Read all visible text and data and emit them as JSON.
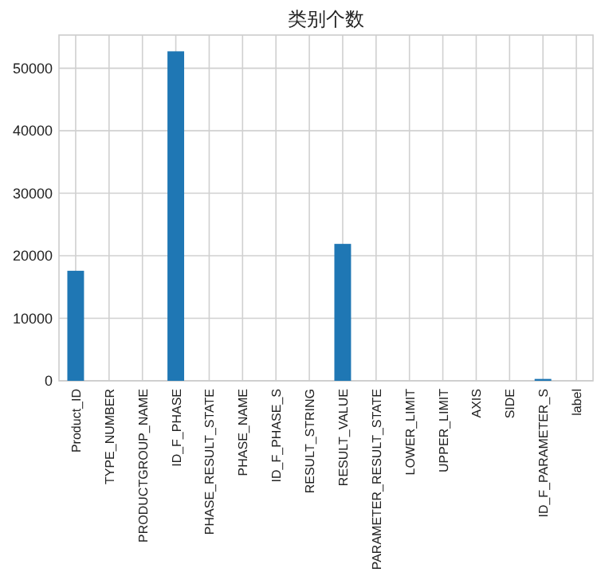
{
  "chart_data": {
    "type": "bar",
    "title": "类别个数",
    "categories": [
      "Product_ID",
      "TYPE_NUMBER",
      "PRODUCTGROUP_NAME",
      "ID_F_PHASE",
      "PHASE_RESULT_STATE",
      "PHASE_NAME",
      "ID_F_PHASE_S",
      "RESULT_STRING",
      "RESULT_VALUE",
      "PARAMETER_RESULT_STATE",
      "LOWER_LIMIT",
      "UPPER_LIMIT",
      "AXIS",
      "SIDE",
      "ID_F_PARAMETER_S",
      "label"
    ],
    "values": [
      17600,
      0,
      0,
      52700,
      0,
      0,
      0,
      0,
      21900,
      0,
      0,
      0,
      0,
      0,
      300,
      0
    ],
    "color": "#1f77b4",
    "ylim": [
      0,
      55300
    ],
    "yticks": [
      0,
      10000,
      20000,
      30000,
      40000,
      50000
    ],
    "grid": true,
    "legend": false
  }
}
